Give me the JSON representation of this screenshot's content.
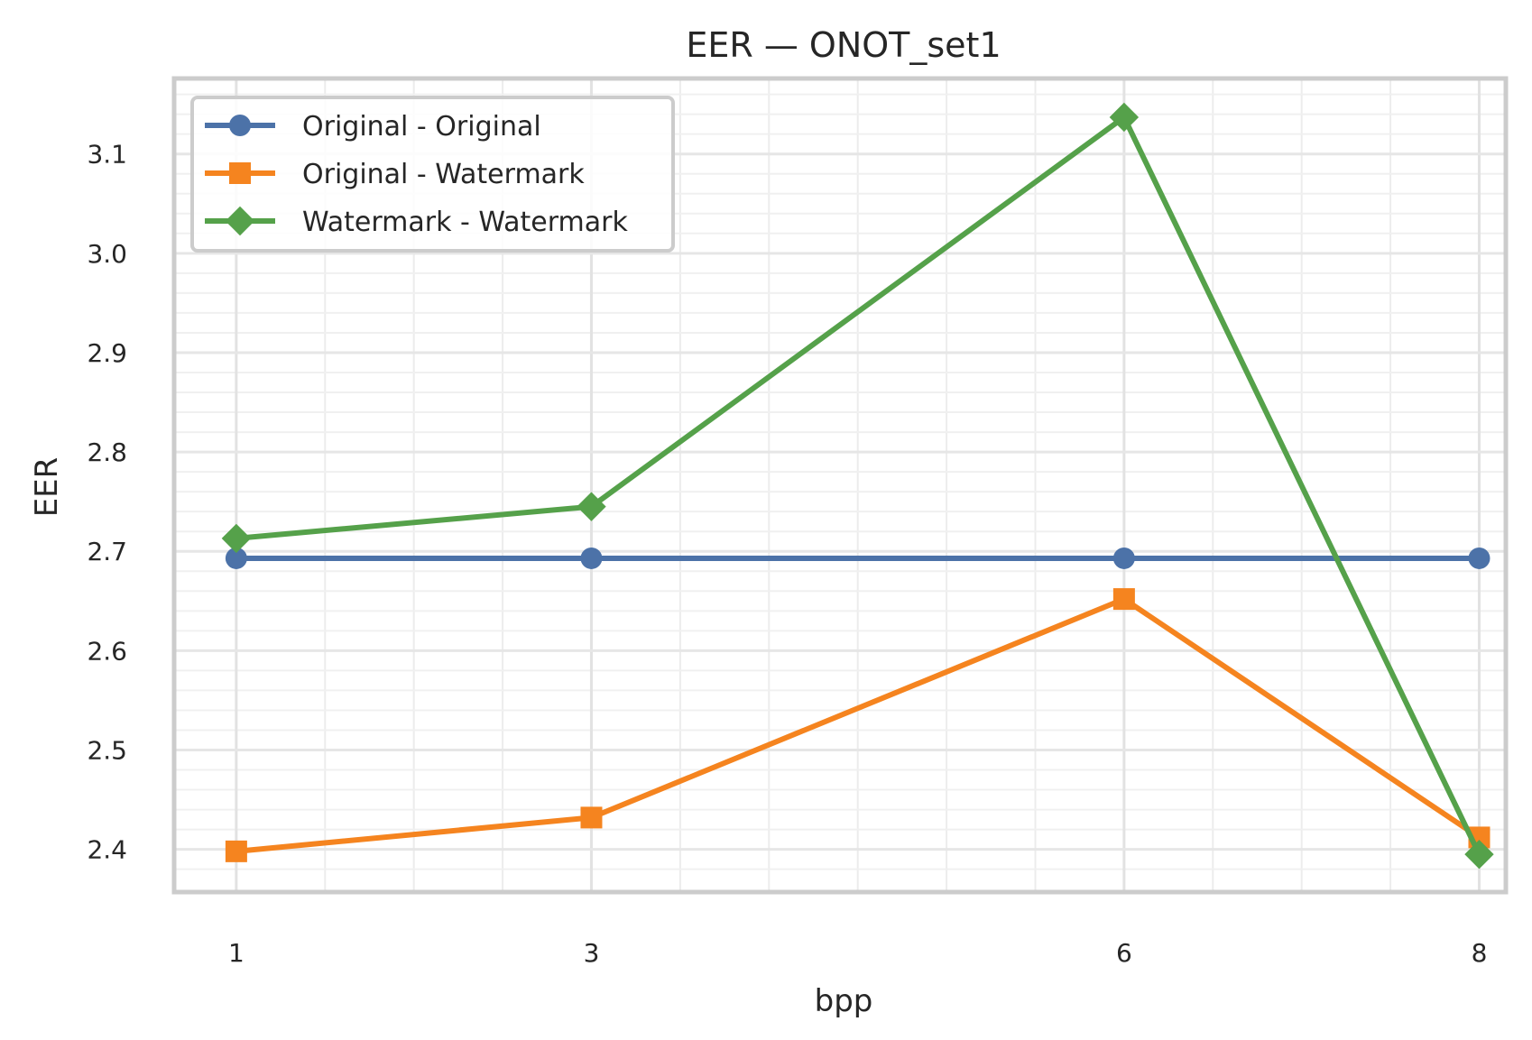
{
  "chart_data": {
    "type": "line",
    "title": "EER — ONOT_set1",
    "xlabel": "bpp",
    "ylabel": "EER",
    "x": [
      1,
      3,
      6,
      8
    ],
    "x_tick_labels": [
      "1",
      "3",
      "6",
      "8"
    ],
    "xlim": [
      0.65,
      8.15
    ],
    "ylim": [
      2.357,
      3.176
    ],
    "y_ticks": [
      2.4,
      2.5,
      2.6,
      2.7,
      2.8,
      2.9,
      3.0,
      3.1
    ],
    "y_tick_labels": [
      "2.4",
      "2.5",
      "2.6",
      "2.7",
      "2.8",
      "2.9",
      "3.0",
      "3.1"
    ],
    "grid": true,
    "minor_grid": true,
    "legend_position": "upper-left",
    "series": [
      {
        "name": "Original - Original",
        "color": "#4c72a8",
        "marker": "circle",
        "values": [
          2.693,
          2.693,
          2.693,
          2.693
        ]
      },
      {
        "name": "Original - Watermark",
        "color": "#f5841f",
        "marker": "square",
        "values": [
          2.398,
          2.432,
          2.652,
          2.412
        ]
      },
      {
        "name": "Watermark - Watermark",
        "color": "#55a14a",
        "marker": "diamond",
        "values": [
          2.713,
          2.745,
          3.137,
          2.395
        ]
      }
    ]
  }
}
